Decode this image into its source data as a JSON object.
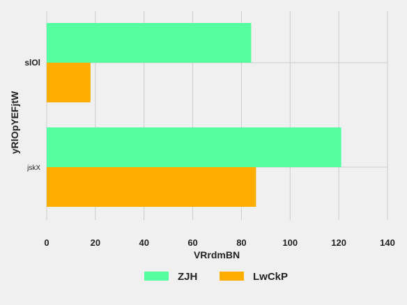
{
  "chart_data": {
    "type": "bar",
    "orientation": "horizontal",
    "categories": [
      "slOl",
      "jskX"
    ],
    "series": [
      {
        "name": "ZJH",
        "color": "#55ff9f",
        "values": [
          84,
          121
        ]
      },
      {
        "name": "LwCkP",
        "color": "#ffae00",
        "values": [
          18,
          86
        ]
      }
    ],
    "xlabel": "VRrdmBN",
    "ylabel": "yRlOpYEFjtW",
    "xlim": [
      0,
      140
    ],
    "xticks": [
      0,
      20,
      40,
      60,
      80,
      100,
      120,
      140
    ],
    "grid": true,
    "legend_position": "bottom"
  }
}
